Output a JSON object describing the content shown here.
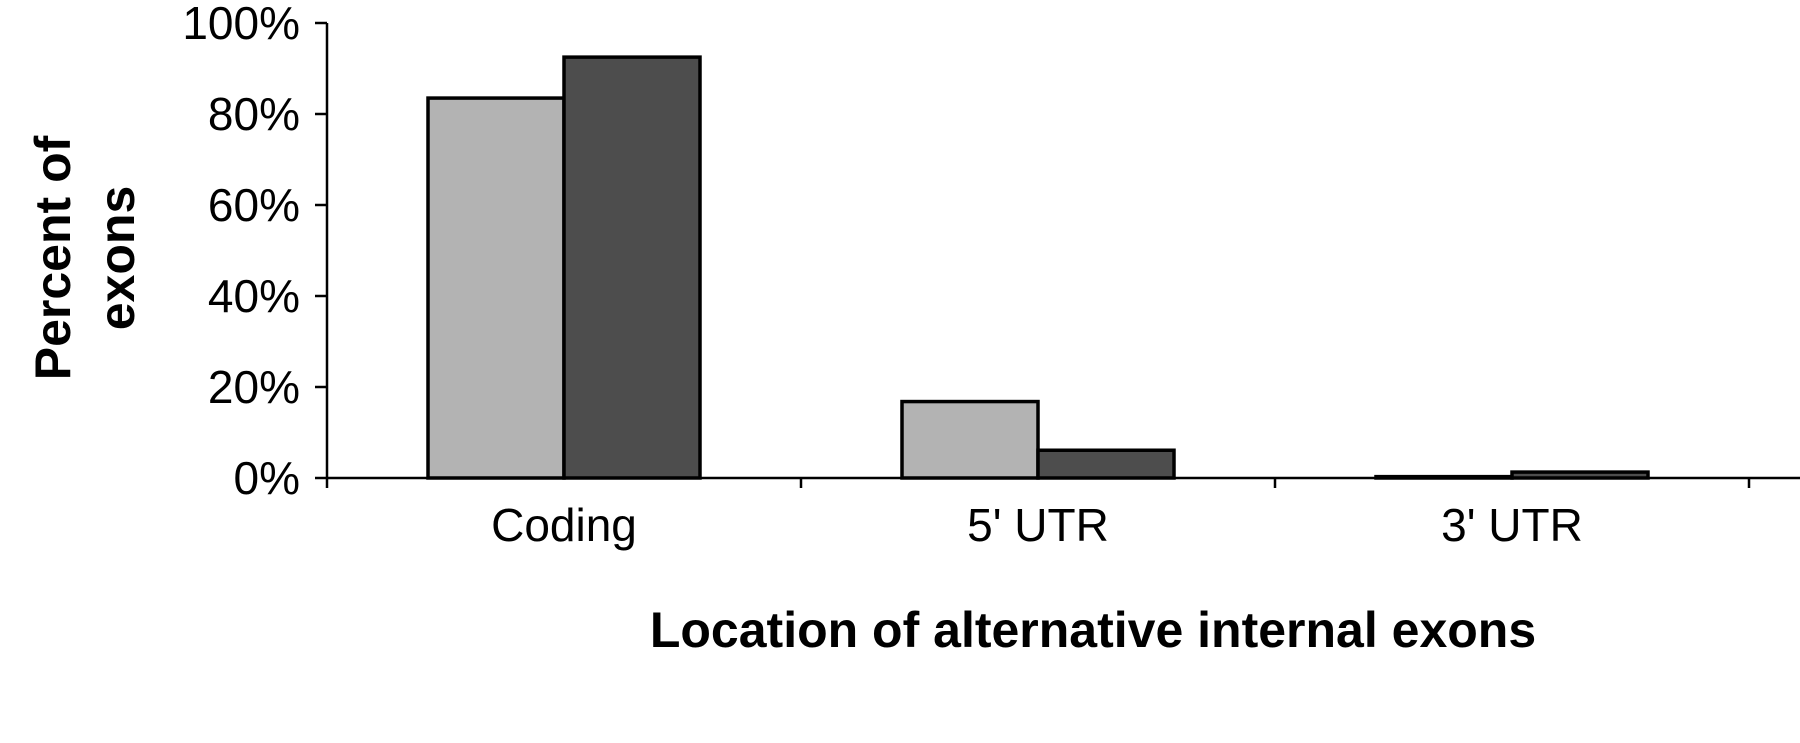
{
  "chart_data": {
    "type": "bar",
    "categories": [
      "Coding",
      "5' UTR",
      "3' UTR"
    ],
    "series": [
      {
        "values": [
          83.5,
          16.8,
          0.3
        ],
        "color": "#b3b3b3"
      },
      {
        "values": [
          92.5,
          6.1,
          1.3
        ],
        "color": "#4d4d4d"
      }
    ],
    "ylim": [
      0,
      100
    ],
    "yticks": [
      0,
      20,
      40,
      60,
      80,
      100
    ],
    "ytick_labels": [
      "0%",
      "20%",
      "40%",
      "60%",
      "80%",
      "100%"
    ],
    "xlabel": "Location of alternative internal exons",
    "ylabel_lines": [
      "Percent of",
      "exons"
    ],
    "grid": false,
    "legend": "none"
  }
}
